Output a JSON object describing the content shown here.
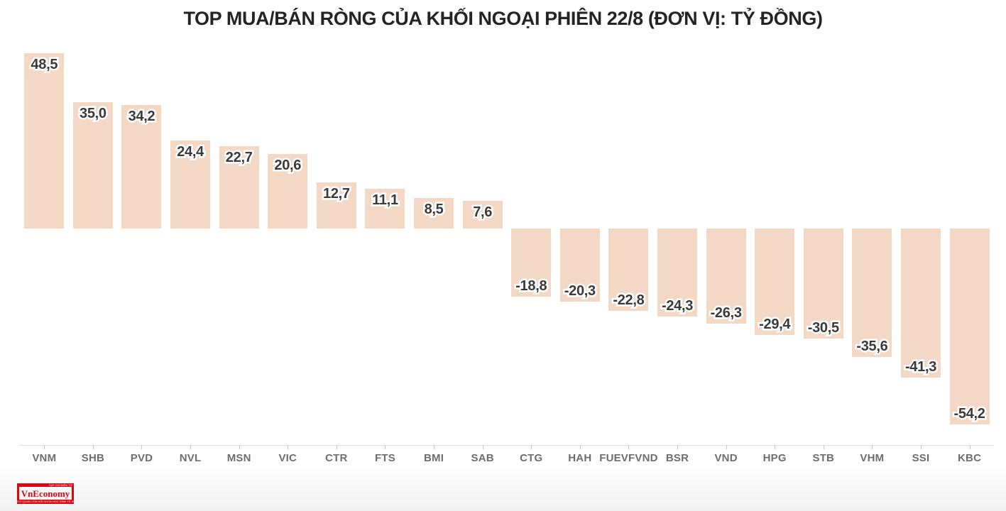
{
  "title": "TOP MUA/BÁN RÒNG CỦA KHỐI NGOẠI PHIÊN 22/8 (ĐƠN VỊ: TỶ ĐỒNG)",
  "chart_data": {
    "type": "bar",
    "title": "TOP MUA/BÁN RÒNG CỦA KHỐI NGOẠI PHIÊN 22/8 (ĐƠN VỊ: TỶ ĐỒNG)",
    "categories": [
      "VNM",
      "SHB",
      "PVD",
      "NVL",
      "MSN",
      "VIC",
      "CTR",
      "FTS",
      "BMI",
      "SAB",
      "CTG",
      "HAH",
      "FUEVFVND",
      "BSR",
      "VND",
      "HPG",
      "STB",
      "VHM",
      "SSI",
      "KBC"
    ],
    "values": [
      48.5,
      35.0,
      34.2,
      24.4,
      22.7,
      20.6,
      12.7,
      11.1,
      8.5,
      7.6,
      -18.8,
      -20.3,
      -22.8,
      -24.3,
      -26.3,
      -29.4,
      -30.5,
      -35.6,
      -41.3,
      -54.2
    ],
    "value_labels": [
      "48,5",
      "35,0",
      "34,2",
      "24,4",
      "22,7",
      "20,6",
      "12,7",
      "11,1",
      "8,5",
      "7,6",
      "-18,8",
      "-20,3",
      "-22,8",
      "-24,3",
      "-26,3",
      "-29,4",
      "-30,5",
      "-35,6",
      "-41,3",
      "-54,2"
    ],
    "xlabel": "",
    "ylabel": "",
    "ylim": [
      -60,
      52
    ],
    "grid": false,
    "legend": false,
    "baseline": 0,
    "colors": {
      "bar": "#f3d9c5",
      "value_label": "#3a3a3a",
      "axis_line": "#e3e3e3",
      "tick": "#c8c8c8",
      "category_label": "#6e6e6e",
      "title": "#242424"
    }
  },
  "logo": {
    "top_text": "TẠP CHÍ ĐIỆN TỬ",
    "name": "VnEconomy",
    "bottom_text": "CƠ QUAN CỦA HỘI KHOA HỌC KINH TẾ VIỆT NAM",
    "brand_color": "#e30613",
    "name_color": "#e30613"
  }
}
